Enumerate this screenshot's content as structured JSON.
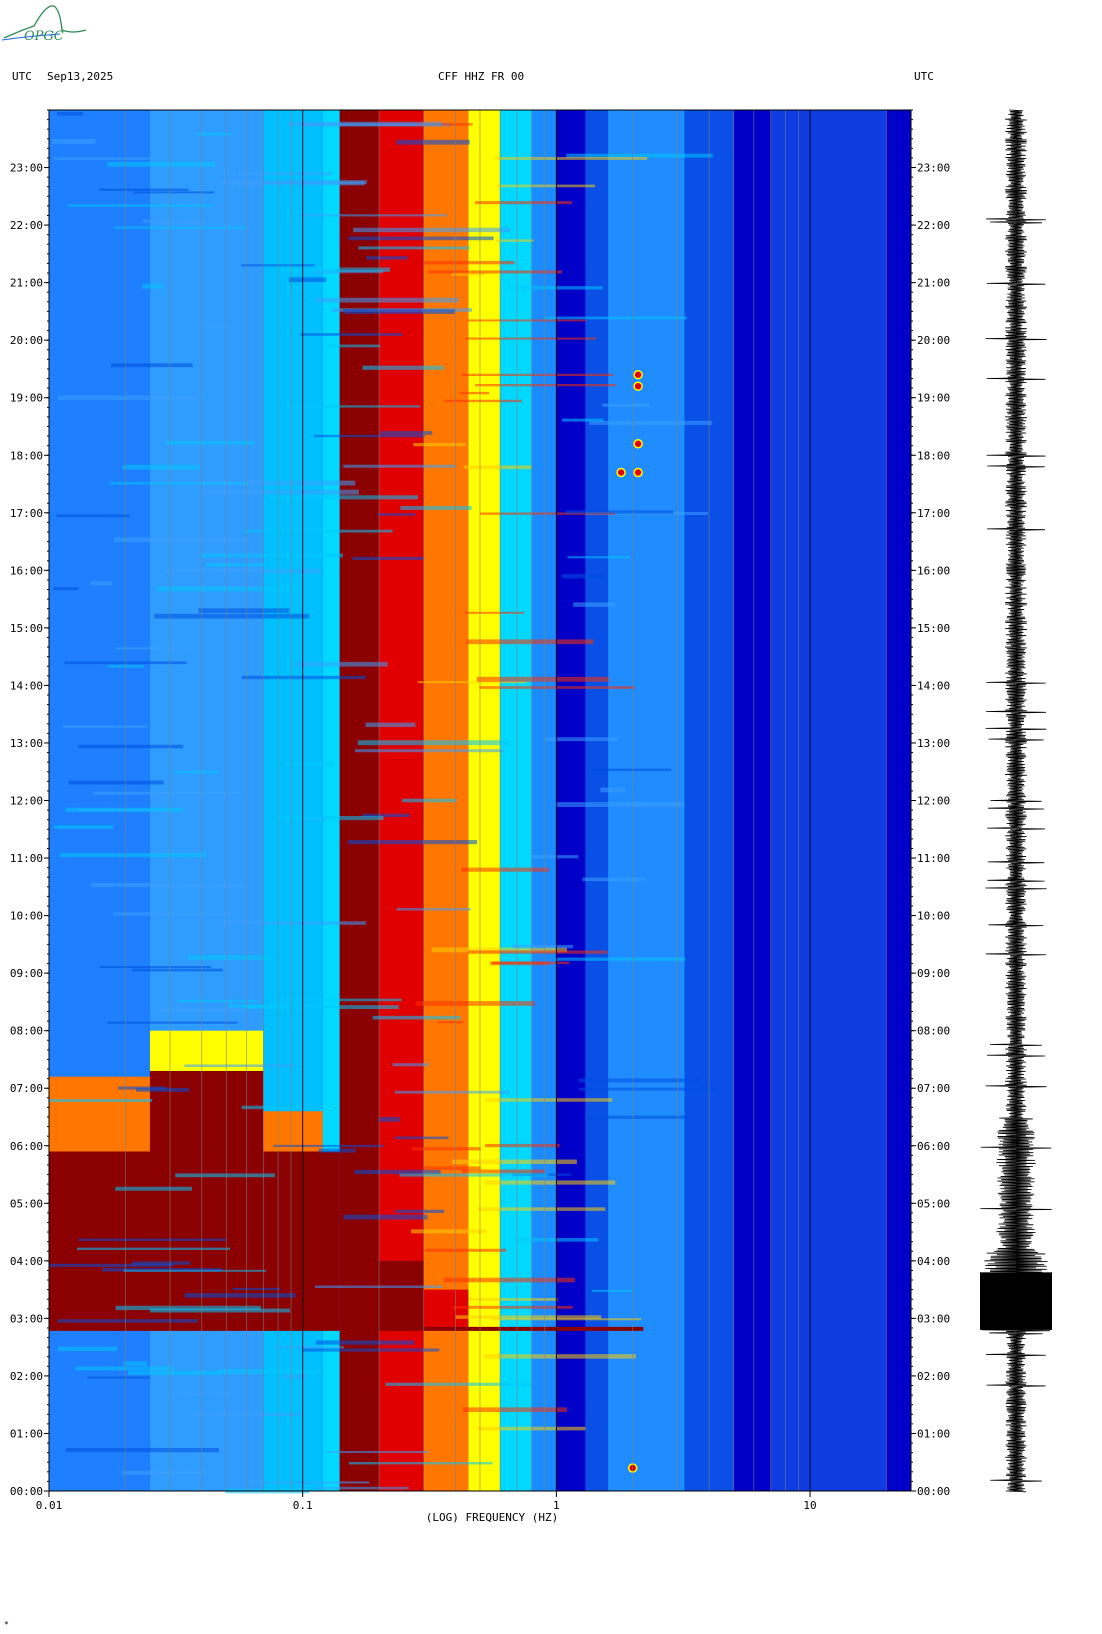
{
  "logo": {
    "text": "OPGC",
    "color": "#2e8b57"
  },
  "header": {
    "left_tz": "UTC",
    "date": "Sep13,2025",
    "station": "CFF HHZ FR 00",
    "right_tz": "UTC"
  },
  "colors": {
    "cold": "#0000c8",
    "mid_blue": "#1e7fff",
    "cyan": "#00d8ff",
    "yellow": "#ffff00",
    "orange": "#ff7700",
    "red": "#e00000",
    "dark_red": "#8b0000",
    "trace": "#000000"
  },
  "chart_data": {
    "type": "heatmap",
    "title": "CFF HHZ FR 00",
    "xlabel": "(LOG) FREQUENCY (HZ)",
    "ylabel": "",
    "x_scale": "log",
    "xlim": [
      0.01,
      25
    ],
    "x_tick_labels": [
      "0.01",
      "0.1",
      "1",
      "10"
    ],
    "x_ticks": [
      0.01,
      0.1,
      1,
      10
    ],
    "ylim_hours": [
      0,
      24
    ],
    "y_tick_labels": [
      "23:00",
      "22:00",
      "21:00",
      "20:00",
      "19:00",
      "18:00",
      "17:00",
      "16:00",
      "15:00",
      "14:00",
      "13:00",
      "12:00",
      "11:00",
      "10:00",
      "09:00",
      "08:00",
      "07:00",
      "06:00",
      "05:00",
      "04:00",
      "03:00",
      "02:00",
      "01:00",
      "00:00"
    ],
    "y_ticks_hours": [
      23,
      22,
      21,
      20,
      19,
      18,
      17,
      16,
      15,
      14,
      13,
      12,
      11,
      10,
      9,
      8,
      7,
      6,
      5,
      4,
      3,
      2,
      1,
      0
    ],
    "event_time_hours": 2.8,
    "event_frequency_extent_hz": [
      0.01,
      2.2
    ],
    "microseism_peak_band_hz": [
      0.14,
      0.2
    ],
    "highlight_spots": [
      {
        "freq_hz": 2.1,
        "time_hours": 19.2
      },
      {
        "freq_hz": 2.1,
        "time_hours": 19.4
      },
      {
        "freq_hz": 2.1,
        "time_hours": 18.2
      },
      {
        "freq_hz": 1.8,
        "time_hours": 17.7
      },
      {
        "freq_hz": 2.1,
        "time_hours": 17.7
      },
      {
        "freq_hz": 2.0,
        "time_hours": 0.4
      }
    ],
    "grid": true,
    "legend": "none",
    "waveform_trace": "right-side seismogram"
  },
  "footer": {
    "mark": "*"
  }
}
